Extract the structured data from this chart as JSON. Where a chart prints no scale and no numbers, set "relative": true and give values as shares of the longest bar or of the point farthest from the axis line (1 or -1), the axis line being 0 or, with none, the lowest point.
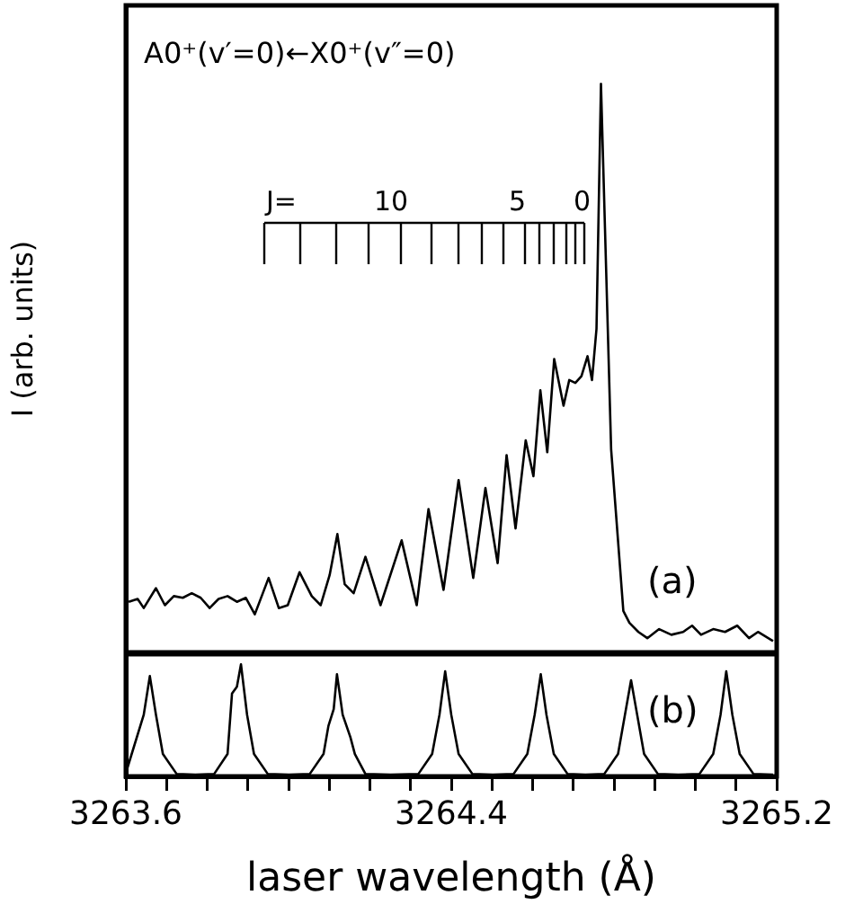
{
  "chart_data": [
    {
      "type": "line",
      "ylabel": "I (arb. units)",
      "relative": true,
      "xlim": [
        3263.6,
        3265.2
      ],
      "tick_labels": false,
      "annotations": [
        "A0⁺(v′=0)←X0⁺(v″=0)",
        "J=",
        "10",
        "5",
        "0"
      ],
      "series": [
        {
          "name": "(a)",
          "color": "#000000",
          "x": [
            3263.607,
            3263.629,
            3263.644,
            3263.674,
            3263.696,
            3263.718,
            3263.74,
            3263.762,
            3263.784,
            3263.806,
            3263.828,
            3263.85,
            3263.873,
            3263.895,
            3263.917,
            3263.951,
            3263.976,
            3263.998,
            3264.027,
            3264.057,
            3264.079,
            3264.101,
            3264.12,
            3264.138,
            3264.16,
            3264.189,
            3264.226,
            3264.278,
            3264.315,
            3264.344,
            3264.381,
            3264.418,
            3264.454,
            3264.484,
            3264.514,
            3264.536,
            3264.558,
            3264.583,
            3264.602,
            3264.619,
            3264.636,
            3264.653,
            3264.676,
            3264.69,
            3264.705,
            3264.72,
            3264.735,
            3264.746,
            3264.757,
            3264.768,
            3264.793,
            3264.823,
            3264.838,
            3264.86,
            3264.882,
            3264.911,
            3264.941,
            3264.97,
            3264.992,
            3265.014,
            3265.044,
            3265.073,
            3265.103,
            3265.132,
            3265.154,
            3265.191
          ],
          "values": [
            0.089,
            0.094,
            0.078,
            0.113,
            0.083,
            0.099,
            0.096,
            0.104,
            0.096,
            0.078,
            0.094,
            0.099,
            0.089,
            0.096,
            0.067,
            0.131,
            0.078,
            0.083,
            0.141,
            0.099,
            0.083,
            0.136,
            0.208,
            0.12,
            0.104,
            0.168,
            0.083,
            0.197,
            0.083,
            0.252,
            0.11,
            0.303,
            0.131,
            0.289,
            0.157,
            0.347,
            0.218,
            0.373,
            0.31,
            0.461,
            0.352,
            0.516,
            0.434,
            0.479,
            0.474,
            0.486,
            0.521,
            0.479,
            0.569,
            1.0,
            0.357,
            0.073,
            0.052,
            0.036,
            0.025,
            0.041,
            0.031,
            0.036,
            0.047,
            0.031,
            0.041,
            0.036,
            0.047,
            0.025,
            0.036,
            0.02
          ]
        }
      ]
    },
    {
      "type": "line",
      "xlabel": "laser wavelength (Å)",
      "relative": true,
      "xlim": [
        3263.6,
        3265.2
      ],
      "tick_labels": "x",
      "xticks": [
        3263.6,
        {
          "value": 3263.7,
          "label": null
        },
        {
          "value": 3263.8,
          "label": null
        },
        {
          "value": 3263.9,
          "label": null
        },
        {
          "value": 3264.0,
          "label": null
        },
        {
          "value": 3264.1,
          "label": null
        },
        {
          "value": 3264.2,
          "label": null
        },
        {
          "value": 3264.3,
          "label": null
        },
        3264.4,
        {
          "value": 3264.5,
          "label": null
        },
        {
          "value": 3264.6,
          "label": null
        },
        {
          "value": 3264.7,
          "label": null
        },
        {
          "value": 3264.8,
          "label": null
        },
        {
          "value": 3264.9,
          "label": null
        },
        {
          "value": 3265.0,
          "label": null
        },
        {
          "value": 3265.1,
          "label": null
        },
        3265.2
      ],
      "series": [
        {
          "name": "(b)",
          "color": "#000000",
          "x": [
            3263.6,
            3263.644,
            3263.659,
            3263.674,
            3263.691,
            3263.725,
            3263.771,
            3263.817,
            3263.85,
            3263.861,
            3263.873,
            3263.883,
            3263.898,
            3263.915,
            3263.949,
            3264.001,
            3264.052,
            3264.086,
            3264.098,
            3264.111,
            3264.119,
            3264.133,
            3264.152,
            3264.163,
            3264.189,
            3264.251,
            3264.319,
            3264.353,
            3264.371,
            3264.385,
            3264.4,
            3264.418,
            3264.452,
            3264.502,
            3264.553,
            3264.587,
            3264.605,
            3264.62,
            3264.634,
            3264.652,
            3264.686,
            3264.73,
            3264.776,
            3264.81,
            3264.827,
            3264.842,
            3264.857,
            3264.874,
            3264.908,
            3264.958,
            3265.01,
            3265.044,
            3265.062,
            3265.076,
            3265.091,
            3265.109,
            3265.143,
            3265.191
          ],
          "values": [
            0.03,
            0.55,
            0.895,
            0.55,
            0.2,
            0.021,
            0.016,
            0.021,
            0.2,
            0.74,
            0.8,
            1.0,
            0.55,
            0.2,
            0.021,
            0.016,
            0.021,
            0.2,
            0.45,
            0.6,
            0.911,
            0.55,
            0.35,
            0.2,
            0.021,
            0.016,
            0.021,
            0.2,
            0.55,
            0.937,
            0.55,
            0.2,
            0.021,
            0.016,
            0.021,
            0.2,
            0.55,
            0.911,
            0.55,
            0.2,
            0.021,
            0.016,
            0.021,
            0.2,
            0.55,
            0.858,
            0.55,
            0.2,
            0.021,
            0.016,
            0.021,
            0.2,
            0.55,
            0.937,
            0.55,
            0.2,
            0.021,
            0.016
          ]
        }
      ]
    }
  ]
}
